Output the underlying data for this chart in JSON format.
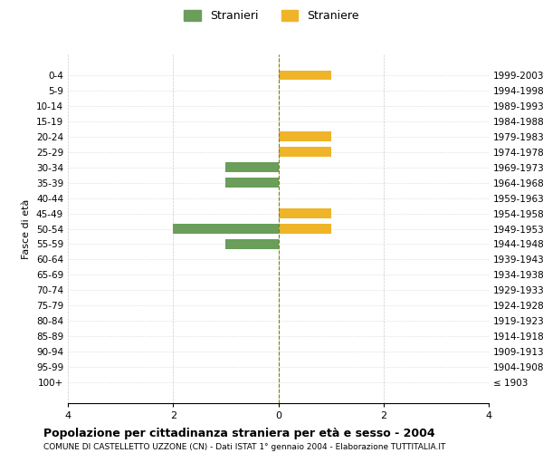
{
  "age_groups": [
    "100+",
    "95-99",
    "90-94",
    "85-89",
    "80-84",
    "75-79",
    "70-74",
    "65-69",
    "60-64",
    "55-59",
    "50-54",
    "45-49",
    "40-44",
    "35-39",
    "30-34",
    "25-29",
    "20-24",
    "15-19",
    "10-14",
    "5-9",
    "0-4"
  ],
  "birth_years": [
    "≤ 1903",
    "1904-1908",
    "1909-1913",
    "1914-1918",
    "1919-1923",
    "1924-1928",
    "1929-1933",
    "1934-1938",
    "1939-1943",
    "1944-1948",
    "1949-1953",
    "1954-1958",
    "1959-1963",
    "1964-1968",
    "1969-1973",
    "1974-1978",
    "1979-1983",
    "1984-1988",
    "1989-1993",
    "1994-1998",
    "1999-2003"
  ],
  "males": [
    0,
    0,
    0,
    0,
    0,
    0,
    0,
    0,
    0,
    1,
    2,
    0,
    0,
    1,
    1,
    0,
    0,
    0,
    0,
    0,
    0
  ],
  "females": [
    0,
    0,
    0,
    0,
    0,
    0,
    0,
    0,
    0,
    0,
    1,
    1,
    0,
    0,
    0,
    1,
    1,
    0,
    0,
    0,
    1
  ],
  "male_color": "#6a9e5a",
  "female_color": "#f0b429",
  "male_label": "Stranieri",
  "female_label": "Straniere",
  "title": "Popolazione per cittadinanza straniera per età e sesso - 2004",
  "subtitle": "COMUNE DI CASTELLETTO UZZONE (CN) - Dati ISTAT 1° gennaio 2004 - Elaborazione TUTTITALIA.IT",
  "ylabel_left": "Fasce di età",
  "xlim": 4,
  "background_color": "#ffffff",
  "grid_color": "#cccccc"
}
